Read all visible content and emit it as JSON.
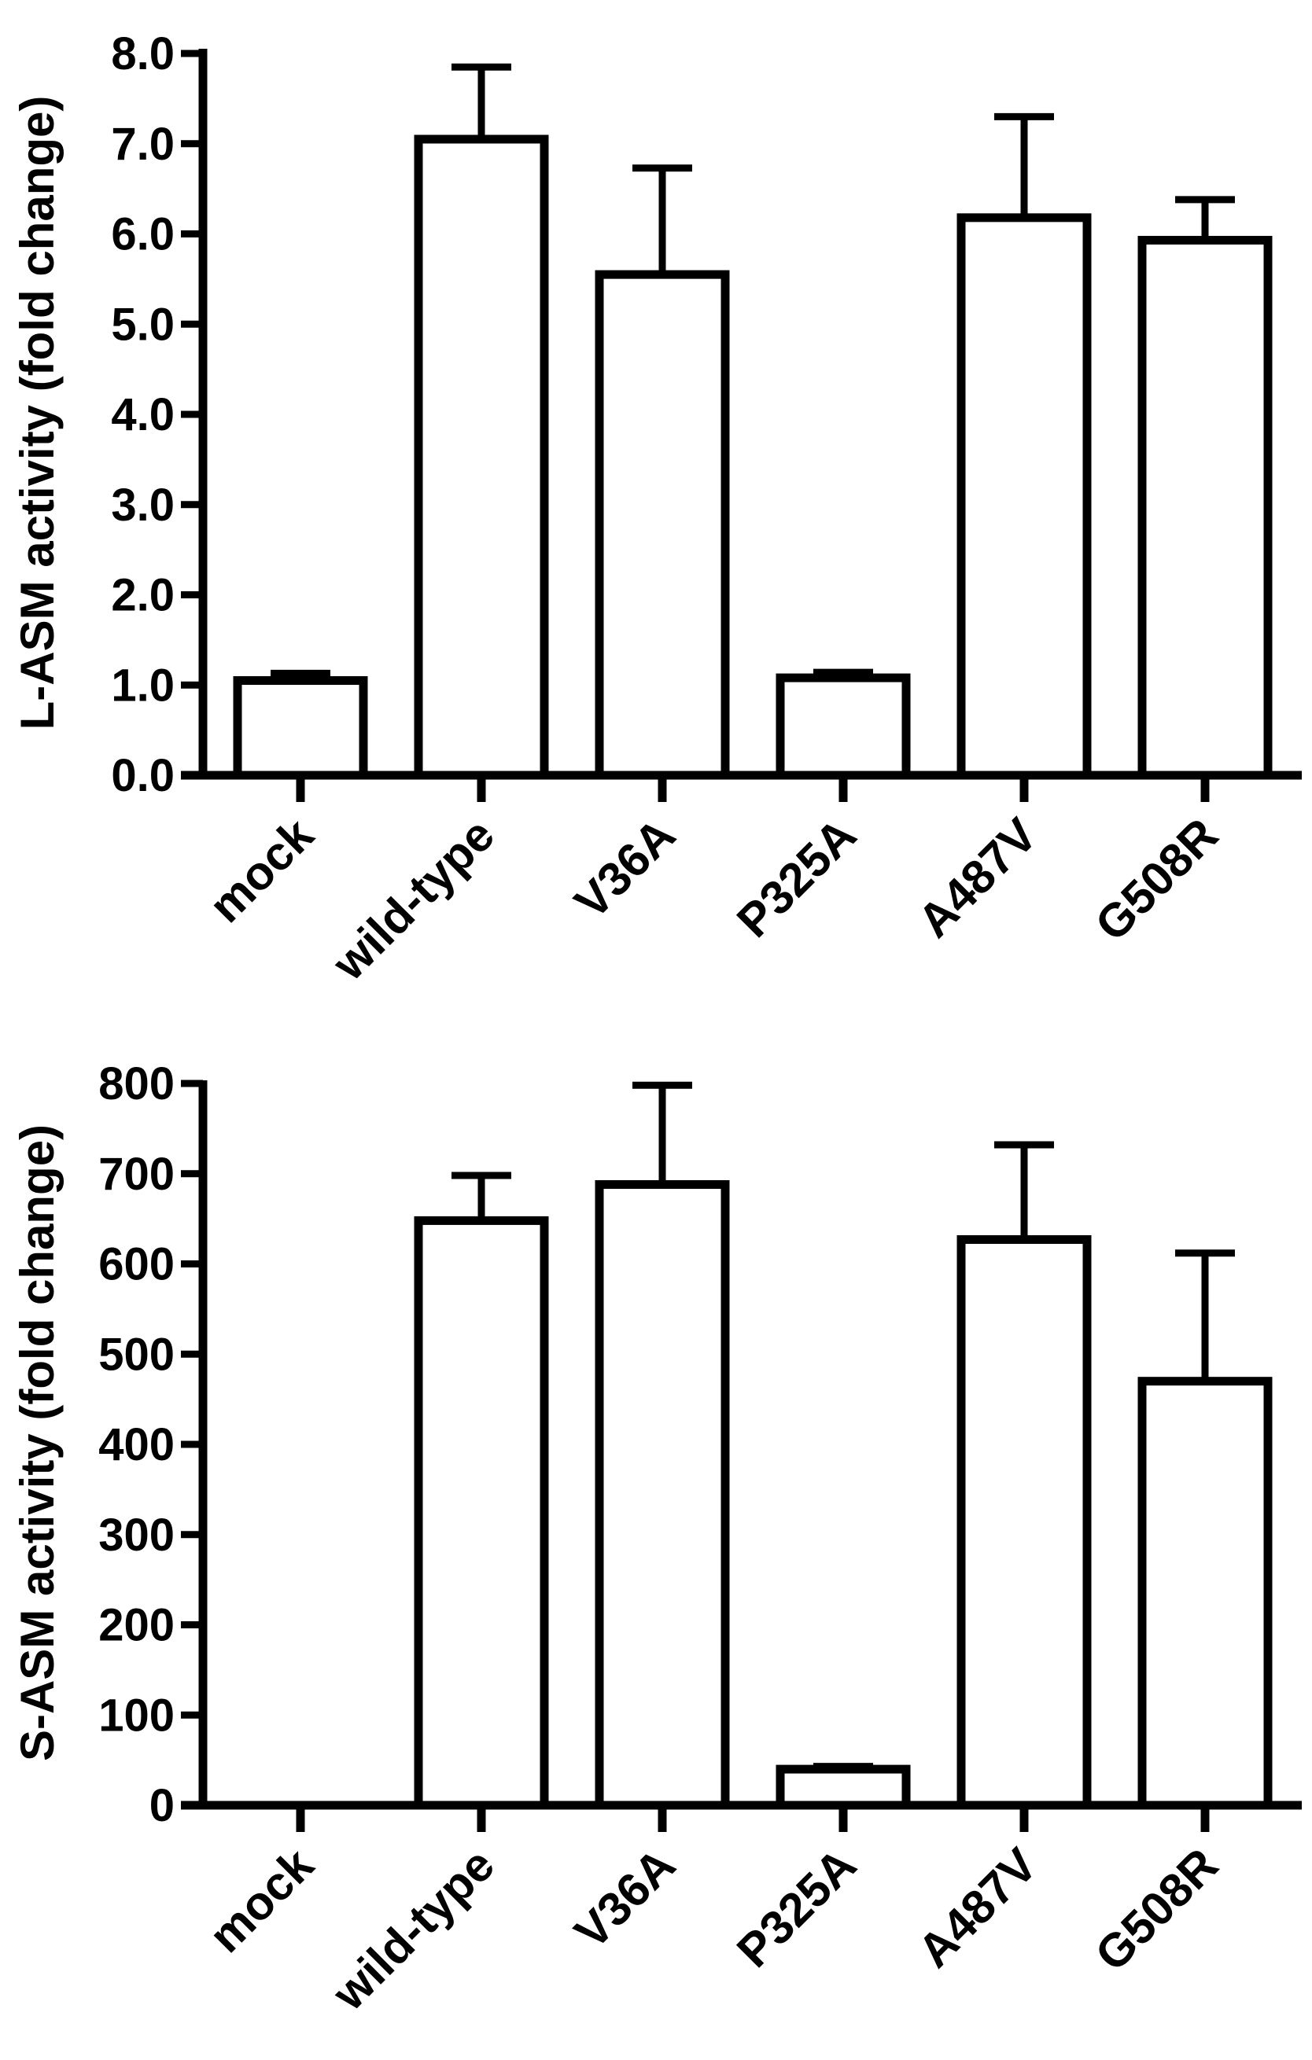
{
  "chart_data": [
    {
      "type": "bar",
      "title": "",
      "xlabel": "",
      "ylabel": "L-ASM activity (fold change)",
      "categories": [
        "mock",
        "wild-type",
        "V36A",
        "P325A",
        "A487V",
        "G508R"
      ],
      "values": [
        1.05,
        7.05,
        5.55,
        1.08,
        6.18,
        5.93
      ],
      "errors": [
        0.08,
        0.8,
        1.18,
        0.06,
        1.12,
        0.45
      ],
      "ylim": [
        0,
        8
      ],
      "yticks": [
        "0.0",
        "1.0",
        "2.0",
        "3.0",
        "4.0",
        "5.0",
        "6.0",
        "7.0",
        "8.0"
      ],
      "grid": false,
      "legend": "none"
    },
    {
      "type": "bar",
      "title": "",
      "xlabel": "",
      "ylabel": "S-ASM activity (fold change)",
      "categories": [
        "mock",
        "wild-type",
        "V36A",
        "P325A",
        "A487V",
        "G508R"
      ],
      "values": [
        0,
        648,
        688,
        40,
        627,
        470
      ],
      "errors": [
        0,
        50,
        110,
        3,
        105,
        142
      ],
      "ylim": [
        0,
        800
      ],
      "yticks": [
        "0",
        "100",
        "200",
        "300",
        "400",
        "500",
        "600",
        "700",
        "800"
      ],
      "grid": false,
      "legend": "none"
    }
  ],
  "colors": {
    "bar_fill": "#ffffff",
    "stroke": "#000000"
  }
}
